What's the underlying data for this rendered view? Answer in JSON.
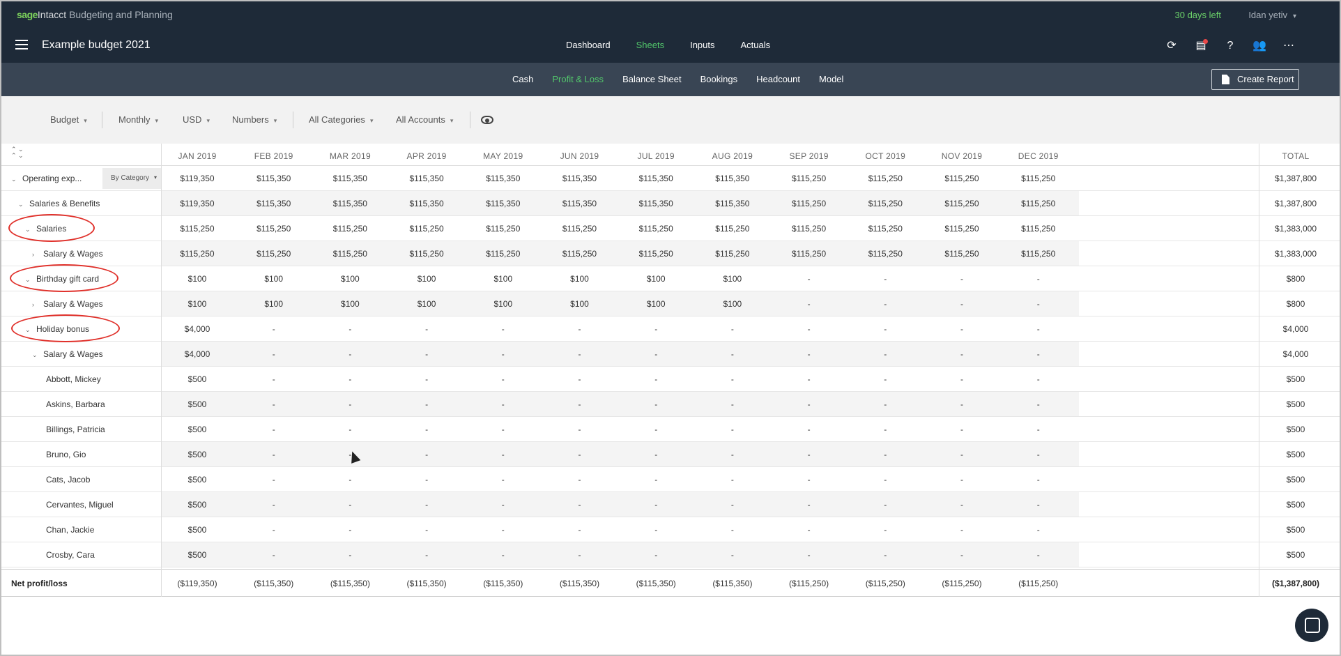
{
  "brand": {
    "sage": "sage",
    "intacct": "Intacct",
    "product": "Budgeting and Planning"
  },
  "trial": "30 days left",
  "user": "Idan yetiv",
  "budget_title": "Example budget 2021",
  "main_nav": [
    {
      "label": "Dashboard",
      "active": false
    },
    {
      "label": "Sheets",
      "active": true
    },
    {
      "label": "Inputs",
      "active": false
    },
    {
      "label": "Actuals",
      "active": false
    }
  ],
  "nav_icons": [
    "sync-icon",
    "clipboard-icon",
    "help-icon",
    "users-icon",
    "more-icon"
  ],
  "sub_tabs": [
    {
      "label": "Cash",
      "active": false
    },
    {
      "label": "Profit & Loss",
      "active": true
    },
    {
      "label": "Balance Sheet",
      "active": false
    },
    {
      "label": "Bookings",
      "active": false
    },
    {
      "label": "Headcount",
      "active": false
    },
    {
      "label": "Model",
      "active": false
    }
  ],
  "create_report": "Create Report",
  "filters": {
    "scenario": "Budget",
    "period": "Monthly",
    "currency": "USD",
    "format": "Numbers",
    "categories": "All Categories",
    "accounts": "All Accounts"
  },
  "months": [
    "JAN 2019",
    "FEB 2019",
    "MAR 2019",
    "APR 2019",
    "MAY 2019",
    "JUN 2019",
    "JUL 2019",
    "AUG 2019",
    "SEP 2019",
    "OCT 2019",
    "NOV 2019",
    "DEC 2019"
  ],
  "total_header": "TOTAL",
  "by_category": "By Category",
  "rows": [
    {
      "label": "Operating exp...",
      "caret": "v",
      "indent": 0,
      "values": [
        "$119,350",
        "$115,350",
        "$115,350",
        "$115,350",
        "$115,350",
        "$115,350",
        "$115,350",
        "$115,350",
        "$115,250",
        "$115,250",
        "$115,250",
        "$115,250"
      ],
      "total": "$1,387,800"
    },
    {
      "label": "Salaries & Benefits",
      "caret": "v",
      "indent": 1,
      "values": [
        "$119,350",
        "$115,350",
        "$115,350",
        "$115,350",
        "$115,350",
        "$115,350",
        "$115,350",
        "$115,350",
        "$115,250",
        "$115,250",
        "$115,250",
        "$115,250"
      ],
      "total": "$1,387,800"
    },
    {
      "label": "Salaries",
      "caret": "v",
      "indent": 2,
      "values": [
        "$115,250",
        "$115,250",
        "$115,250",
        "$115,250",
        "$115,250",
        "$115,250",
        "$115,250",
        "$115,250",
        "$115,250",
        "$115,250",
        "$115,250",
        "$115,250"
      ],
      "total": "$1,383,000"
    },
    {
      "label": "Salary & Wages",
      "caret": ">",
      "indent": 3,
      "values": [
        "$115,250",
        "$115,250",
        "$115,250",
        "$115,250",
        "$115,250",
        "$115,250",
        "$115,250",
        "$115,250",
        "$115,250",
        "$115,250",
        "$115,250",
        "$115,250"
      ],
      "total": "$1,383,000"
    },
    {
      "label": "Birthday gift card",
      "caret": "v",
      "indent": 2,
      "values": [
        "$100",
        "$100",
        "$100",
        "$100",
        "$100",
        "$100",
        "$100",
        "$100",
        "-",
        "-",
        "-",
        "-"
      ],
      "total": "$800"
    },
    {
      "label": "Salary & Wages",
      "caret": ">",
      "indent": 3,
      "values": [
        "$100",
        "$100",
        "$100",
        "$100",
        "$100",
        "$100",
        "$100",
        "$100",
        "-",
        "-",
        "-",
        "-"
      ],
      "total": "$800"
    },
    {
      "label": "Holiday bonus",
      "caret": "v",
      "indent": 2,
      "values": [
        "$4,000",
        "-",
        "-",
        "-",
        "-",
        "-",
        "-",
        "-",
        "-",
        "-",
        "-",
        "-"
      ],
      "total": "$4,000"
    },
    {
      "label": "Salary & Wages",
      "caret": "v",
      "indent": 3,
      "values": [
        "$4,000",
        "-",
        "-",
        "-",
        "-",
        "-",
        "-",
        "-",
        "-",
        "-",
        "-",
        "-"
      ],
      "total": "$4,000"
    },
    {
      "label": "Abbott, Mickey",
      "caret": "",
      "indent": 4,
      "values": [
        "$500",
        "-",
        "-",
        "-",
        "-",
        "-",
        "-",
        "-",
        "-",
        "-",
        "-",
        "-"
      ],
      "total": "$500"
    },
    {
      "label": "Askins, Barbara",
      "caret": "",
      "indent": 4,
      "values": [
        "$500",
        "-",
        "-",
        "-",
        "-",
        "-",
        "-",
        "-",
        "-",
        "-",
        "-",
        "-"
      ],
      "total": "$500"
    },
    {
      "label": "Billings, Patricia",
      "caret": "",
      "indent": 4,
      "values": [
        "$500",
        "-",
        "-",
        "-",
        "-",
        "-",
        "-",
        "-",
        "-",
        "-",
        "-",
        "-"
      ],
      "total": "$500"
    },
    {
      "label": "Bruno, Gio",
      "caret": "",
      "indent": 4,
      "values": [
        "$500",
        "-",
        "-",
        "-",
        "-",
        "-",
        "-",
        "-",
        "-",
        "-",
        "-",
        "-"
      ],
      "total": "$500"
    },
    {
      "label": "Cats, Jacob",
      "caret": "",
      "indent": 4,
      "values": [
        "$500",
        "-",
        "-",
        "-",
        "-",
        "-",
        "-",
        "-",
        "-",
        "-",
        "-",
        "-"
      ],
      "total": "$500"
    },
    {
      "label": "Cervantes, Miguel",
      "caret": "",
      "indent": 4,
      "values": [
        "$500",
        "-",
        "-",
        "-",
        "-",
        "-",
        "-",
        "-",
        "-",
        "-",
        "-",
        "-"
      ],
      "total": "$500"
    },
    {
      "label": "Chan, Jackie",
      "caret": "",
      "indent": 4,
      "values": [
        "$500",
        "-",
        "-",
        "-",
        "-",
        "-",
        "-",
        "-",
        "-",
        "-",
        "-",
        "-"
      ],
      "total": "$500"
    },
    {
      "label": "Crosby, Cara",
      "caret": "",
      "indent": 4,
      "values": [
        "$500",
        "-",
        "-",
        "-",
        "-",
        "-",
        "-",
        "-",
        "-",
        "-",
        "-",
        "-"
      ],
      "total": "$500"
    }
  ],
  "net": {
    "label": "Net profit/loss",
    "values": [
      "($119,350)",
      "($115,350)",
      "($115,350)",
      "($115,350)",
      "($115,350)",
      "($115,350)",
      "($115,350)",
      "($115,350)",
      "($115,250)",
      "($115,250)",
      "($115,250)",
      "($115,250)"
    ],
    "total": "($1,387,800)"
  },
  "highlighted_rows": [
    "Salaries",
    "Birthday gift card",
    "Holiday bonus"
  ],
  "colors": {
    "navy": "#1e2a38",
    "subnav": "#394554",
    "accent_green": "#52c66b",
    "highlight_ring": "#e0302a"
  }
}
